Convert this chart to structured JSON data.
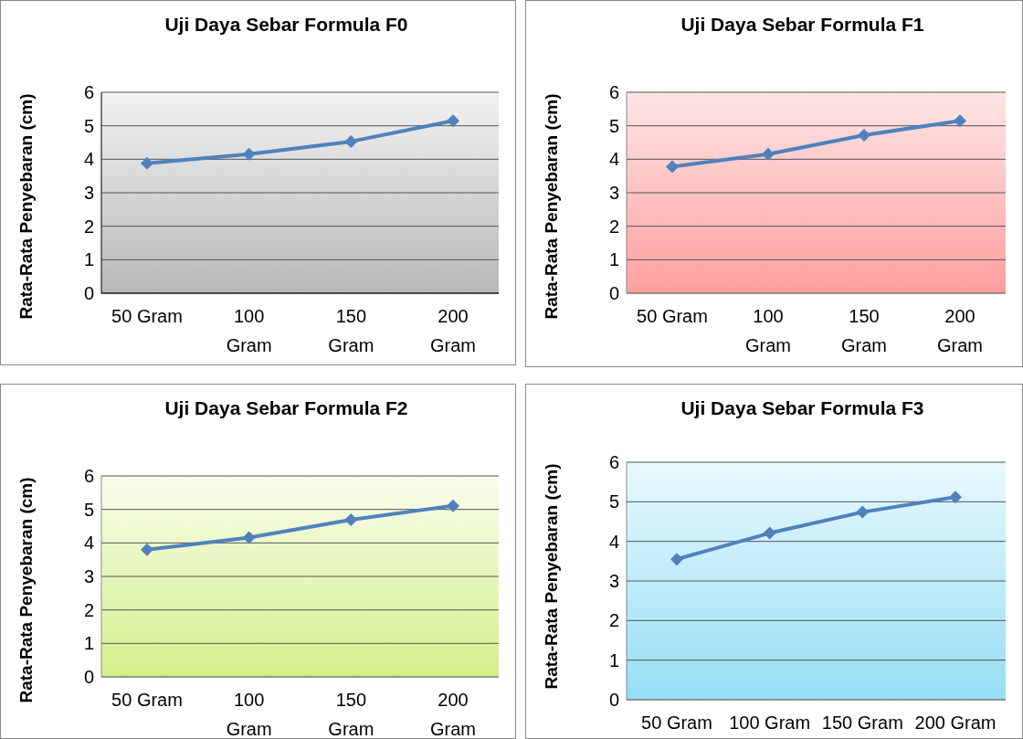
{
  "chart_data": [
    {
      "type": "line",
      "title": "Uji Daya Sebar Formula  F0",
      "ylabel": "Rata-Rata Penyebaran (cm)",
      "categories": [
        "50 Gram",
        "100 Gram",
        "150 Gram",
        "200 Gram"
      ],
      "series": [
        {
          "color": "#4f81bd",
          "values": [
            3.88,
            4.15,
            4.53,
            5.15
          ]
        }
      ],
      "ylim": [
        0,
        6
      ],
      "yticks": [
        0,
        1,
        2,
        3,
        4,
        5,
        6
      ],
      "grid": "y",
      "marker": "diamond"
    },
    {
      "type": "line",
      "title": "Uji Daya Sebar Formula  F1",
      "ylabel": "Rata-Rata Penyebaran (cm)",
      "categories": [
        "50 Gram",
        "100 Gram",
        "150 Gram",
        "200 Gram"
      ],
      "series": [
        {
          "color": "#4f81bd",
          "values": [
            3.78,
            4.15,
            4.72,
            5.15
          ]
        }
      ],
      "ylim": [
        0,
        6
      ],
      "yticks": [
        0,
        1,
        2,
        3,
        4,
        5,
        6
      ],
      "grid": "y",
      "marker": "diamond"
    },
    {
      "type": "line",
      "title": "Uji Daya Sebar Formula  F2",
      "ylabel": "Rata-Rata Penyebaran (cm)",
      "categories": [
        "50 Gram",
        "100 Gram",
        "150 Gram",
        "200 Gram"
      ],
      "series": [
        {
          "color": "#4f81bd",
          "values": [
            3.8,
            4.16,
            4.69,
            5.11
          ]
        }
      ],
      "ylim": [
        0,
        6
      ],
      "yticks": [
        0,
        1,
        2,
        3,
        4,
        5,
        6
      ],
      "grid": "y",
      "marker": "diamond"
    },
    {
      "type": "line",
      "title": "Uji Daya Sebar Formula  F3",
      "ylabel": "Rata-Rata Penyebaran (cm)",
      "categories": [
        "50 Gram",
        "100 Gram",
        "150 Gram",
        "200 Gram"
      ],
      "series": [
        {
          "color": "#4f81bd",
          "values": [
            3.55,
            4.21,
            4.74,
            5.12
          ]
        }
      ],
      "ylim": [
        0,
        6
      ],
      "yticks": [
        0,
        1,
        2,
        3,
        4,
        5,
        6
      ],
      "grid": "y",
      "marker": "diamond"
    }
  ]
}
